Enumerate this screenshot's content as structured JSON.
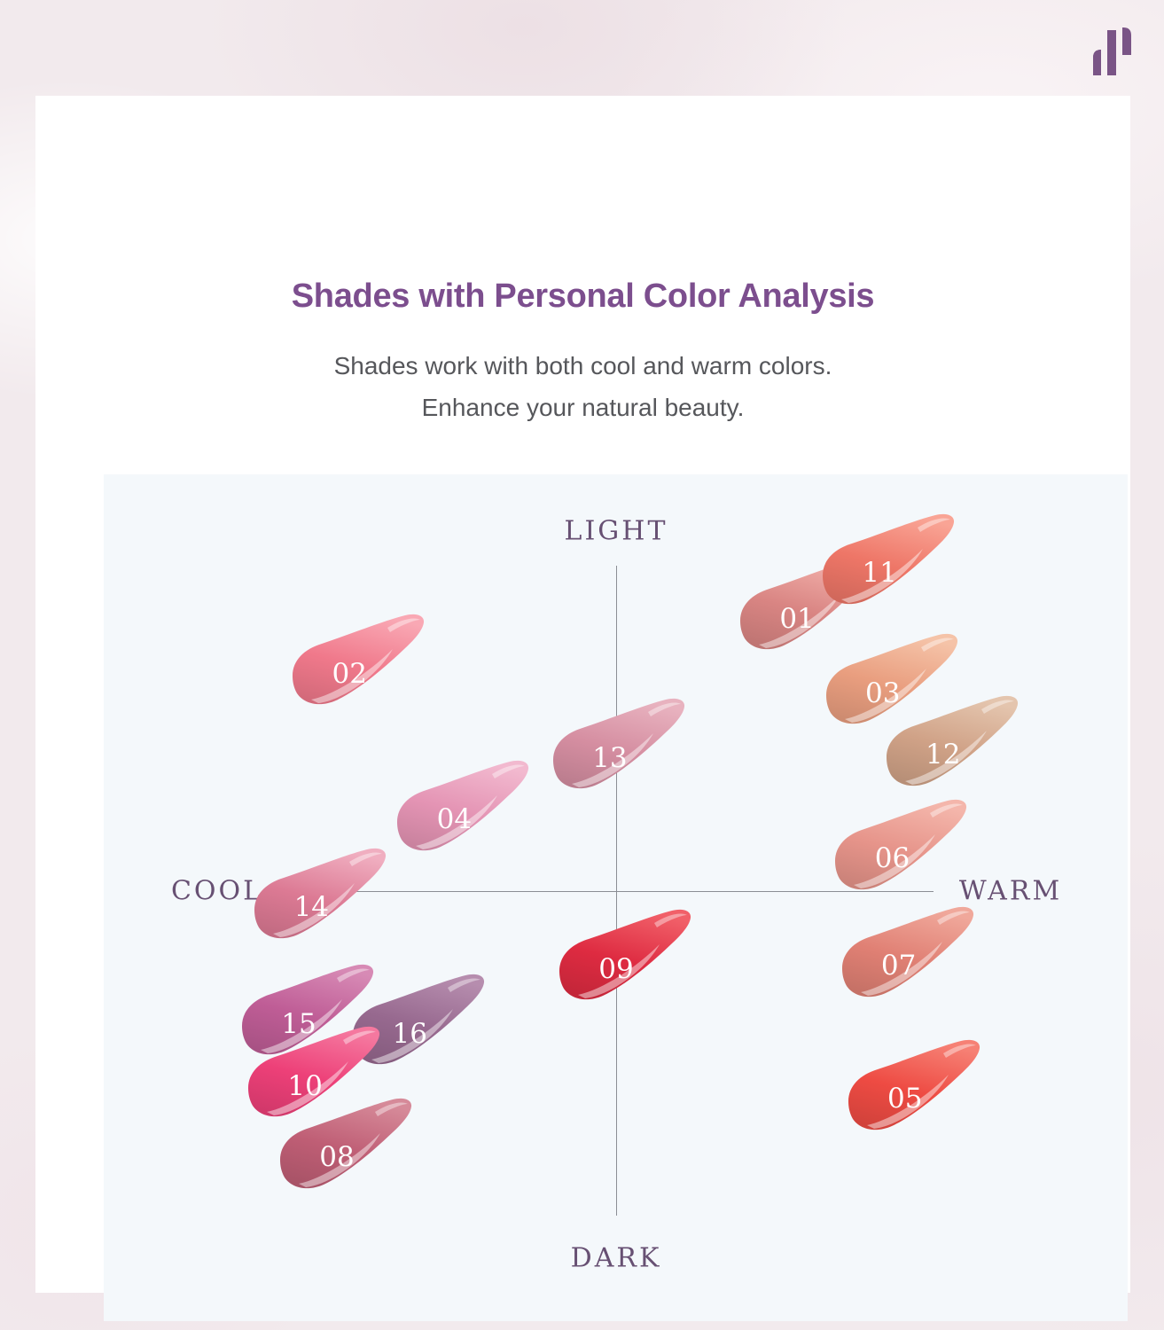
{
  "logo": {
    "name": "brand-logo",
    "color": "#7a5486"
  },
  "header": {
    "title": "Shades with Personal Color Analysis",
    "title_color": "#7c4e8e",
    "subtitle_line1": "Shades work with both cool and warm colors.",
    "subtitle_line2": "Enhance your natural beauty.",
    "subtitle_color": "#56575b"
  },
  "chart_data": {
    "type": "scatter",
    "title": "Lip shade personal color quadrant map",
    "axis_labels": {
      "top": "LIGHT",
      "bottom": "DARK",
      "left": "COOL",
      "right": "WARM"
    },
    "axis_label_color": "#675073",
    "axis_line_color": "#8b8e95",
    "panel_background": "#f4f8fb",
    "xlabel": "COOL to WARM",
    "ylabel": "DARK to LIGHT",
    "xlim": [
      -1,
      1
    ],
    "ylim": [
      -1,
      1
    ],
    "grid": false,
    "legend": "none",
    "points": [
      {
        "id": "01",
        "cool_warm": 0.57,
        "light_dark": 0.84,
        "color": "#d98583",
        "color_light": "#f2b0aa"
      },
      {
        "id": "11",
        "cool_warm": 0.83,
        "light_dark": 0.98,
        "color": "#ee7667",
        "color_light": "#f9a495"
      },
      {
        "id": "02",
        "cool_warm": -0.84,
        "light_dark": 0.67,
        "color": "#f0798b",
        "color_light": "#f9a8b4"
      },
      {
        "id": "03",
        "cool_warm": 0.84,
        "light_dark": 0.61,
        "color": "#e99e7f",
        "color_light": "#f5c3a8"
      },
      {
        "id": "12",
        "cool_warm": 1.03,
        "light_dark": 0.42,
        "color": "#d0a287",
        "color_light": "#e4c5ae"
      },
      {
        "id": "13",
        "cool_warm": -0.02,
        "light_dark": 0.41,
        "color": "#d58ea1",
        "color_light": "#e8b2bf"
      },
      {
        "id": "04",
        "cool_warm": -0.51,
        "light_dark": 0.22,
        "color": "#e494b4",
        "color_light": "#f2b9cf"
      },
      {
        "id": "06",
        "cool_warm": 0.87,
        "light_dark": 0.1,
        "color": "#e6948a",
        "color_light": "#f4b6ab"
      },
      {
        "id": "14",
        "cool_warm": -0.96,
        "light_dark": -0.05,
        "color": "#dc7a94",
        "color_light": "#f0aec0"
      },
      {
        "id": "07",
        "cool_warm": 0.89,
        "light_dark": -0.23,
        "color": "#e08074",
        "color_light": "#f0a89b"
      },
      {
        "id": "09",
        "cool_warm": 0.0,
        "light_dark": -0.24,
        "color": "#de2b41",
        "color_light": "#f16069"
      },
      {
        "id": "15",
        "cool_warm": -1.0,
        "light_dark": -0.41,
        "color": "#bf5d96",
        "color_light": "#d78ab5"
      },
      {
        "id": "16",
        "cool_warm": -0.65,
        "light_dark": -0.44,
        "color": "#97698f",
        "color_light": "#b68dae"
      },
      {
        "id": "10",
        "cool_warm": -0.98,
        "light_dark": -0.6,
        "color": "#ed4078",
        "color_light": "#f5789f"
      },
      {
        "id": "05",
        "cool_warm": 0.91,
        "light_dark": -0.64,
        "color": "#ee4b43",
        "color_light": "#f68175"
      },
      {
        "id": "08",
        "cool_warm": -0.88,
        "light_dark": -0.82,
        "color": "#bf5e75",
        "color_light": "#d68a99"
      }
    ]
  }
}
